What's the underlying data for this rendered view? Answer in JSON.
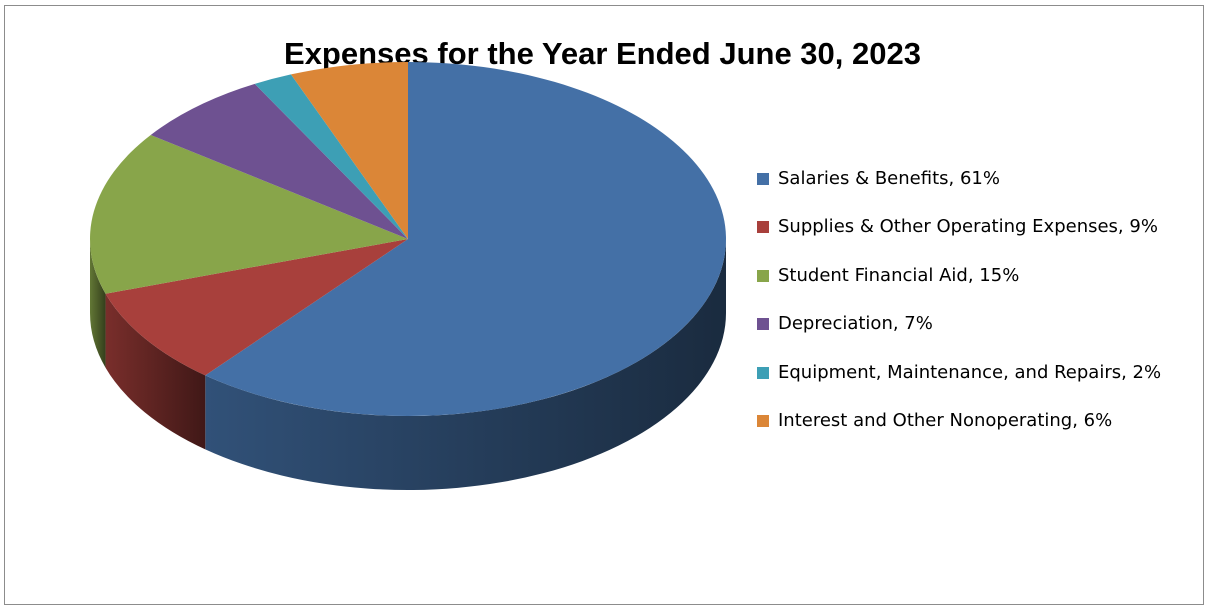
{
  "chart_data": {
    "type": "pie",
    "title": "Expenses for the Year Ended June 30, 2023",
    "categories": [
      "Salaries & Benefits",
      "Supplies & Other Operating Expenses",
      "Student Financial Aid",
      "Depreciation",
      "Equipment, Maintenance, and Repairs",
      "Interest and Other Nonoperating"
    ],
    "values": [
      61,
      9,
      15,
      7,
      2,
      6
    ],
    "unit": "%",
    "legend_labels": [
      "Salaries & Benefits, 61%",
      "Supplies & Other Operating Expenses, 9%",
      "Student Financial Aid, 15%",
      "Depreciation, 7%",
      "Equipment, Maintenance, and Repairs, 2%",
      "Interest and Other Nonoperating, 6%"
    ],
    "colors": [
      "#4470a6",
      "#a8403c",
      "#88a54a",
      "#6e5191",
      "#3d9fb5",
      "#db8637"
    ],
    "legend_position": "right",
    "style": "3d-pie"
  }
}
